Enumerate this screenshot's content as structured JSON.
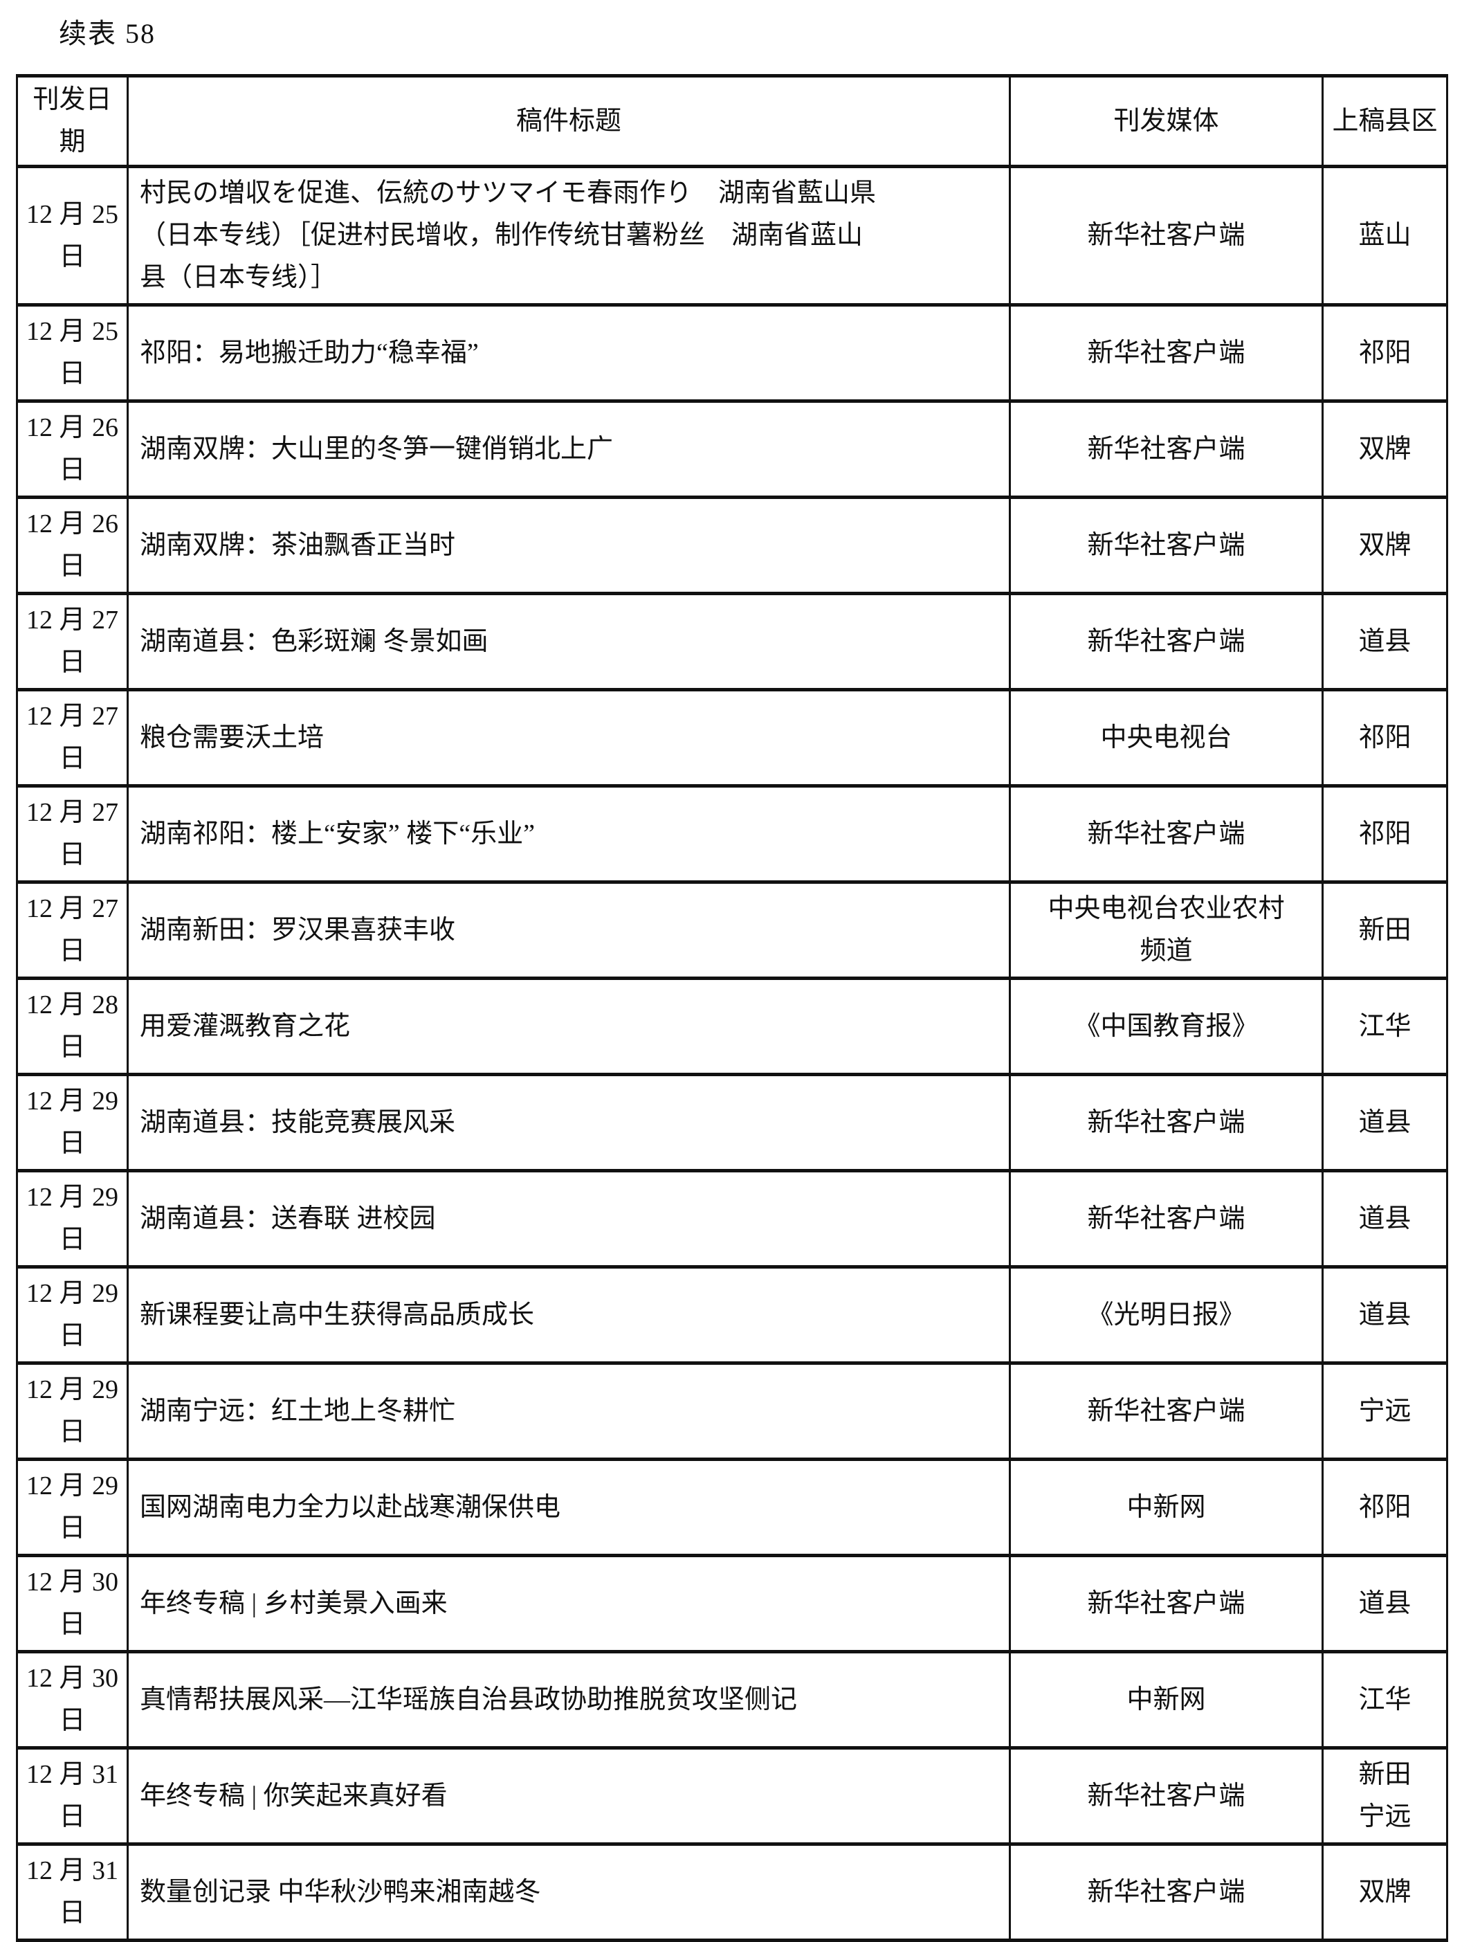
{
  "page": {
    "caption": "续表 58"
  },
  "table": {
    "headers": [
      "刊发日期",
      "稿件标题",
      "刊发媒体",
      "上稿县区"
    ],
    "rows": [
      {
        "date": "12 月 25 日",
        "title": "村民の増収を促進、伝統のサツマイモ春雨作り　湖南省藍山県\n（日本专线）［促进村民增收，制作传统甘薯粉丝　湖南省蓝山\n县（日本专线）］",
        "media": "新华社客户端",
        "county": "蓝山"
      },
      {
        "date": "12 月 25 日",
        "title": "祁阳：易地搬迁助力“稳幸福”",
        "media": "新华社客户端",
        "county": "祁阳"
      },
      {
        "date": "12 月 26 日",
        "title": "湖南双牌：大山里的冬笋一键俏销北上广",
        "media": "新华社客户端",
        "county": "双牌"
      },
      {
        "date": "12 月 26 日",
        "title": "湖南双牌：茶油飘香正当时",
        "media": "新华社客户端",
        "county": "双牌"
      },
      {
        "date": "12 月 27 日",
        "title": "湖南道县：色彩斑斓 冬景如画",
        "media": "新华社客户端",
        "county": "道县"
      },
      {
        "date": "12 月 27 日",
        "title": "粮仓需要沃土培",
        "media": "中央电视台",
        "county": "祁阳"
      },
      {
        "date": "12 月 27 日",
        "title": "湖南祁阳：楼上“安家” 楼下“乐业”",
        "media": "新华社客户端",
        "county": "祁阳"
      },
      {
        "date": "12 月 27 日",
        "title": "湖南新田：罗汉果喜获丰收",
        "media": "中央电视台农业农村\n频道",
        "county": "新田"
      },
      {
        "date": "12 月 28 日",
        "title": "用爱灌溉教育之花",
        "media": "《中国教育报》",
        "county": "江华"
      },
      {
        "date": "12 月 29 日",
        "title": "湖南道县：技能竞赛展风采",
        "media": "新华社客户端",
        "county": "道县"
      },
      {
        "date": "12 月 29 日",
        "title": "湖南道县：送春联 进校园",
        "media": "新华社客户端",
        "county": "道县"
      },
      {
        "date": "12 月 29 日",
        "title": "新课程要让高中生获得高品质成长",
        "media": "《光明日报》",
        "county": "道县"
      },
      {
        "date": "12 月 29 日",
        "title": "湖南宁远：红土地上冬耕忙",
        "media": "新华社客户端",
        "county": "宁远"
      },
      {
        "date": "12 月 29 日",
        "title": "国网湖南电力全力以赴战寒潮保供电",
        "media": "中新网",
        "county": "祁阳"
      },
      {
        "date": "12 月 30 日",
        "title": "年终专稿 | 乡村美景入画来",
        "media": "新华社客户端",
        "county": "道县"
      },
      {
        "date": "12 月 30 日",
        "title": "真情帮扶展风采—江华瑶族自治县政协助推脱贫攻坚侧记",
        "media": "中新网",
        "county": "江华"
      },
      {
        "date": "12 月 31 日",
        "title": "年终专稿 | 你笑起来真好看",
        "media": "新华社客户端",
        "county": "新田\n宁远"
      },
      {
        "date": "12 月 31 日",
        "title": "数量创记录 中华秋沙鸭来湘南越冬",
        "media": "新华社客户端",
        "county": "双牌"
      }
    ]
  }
}
